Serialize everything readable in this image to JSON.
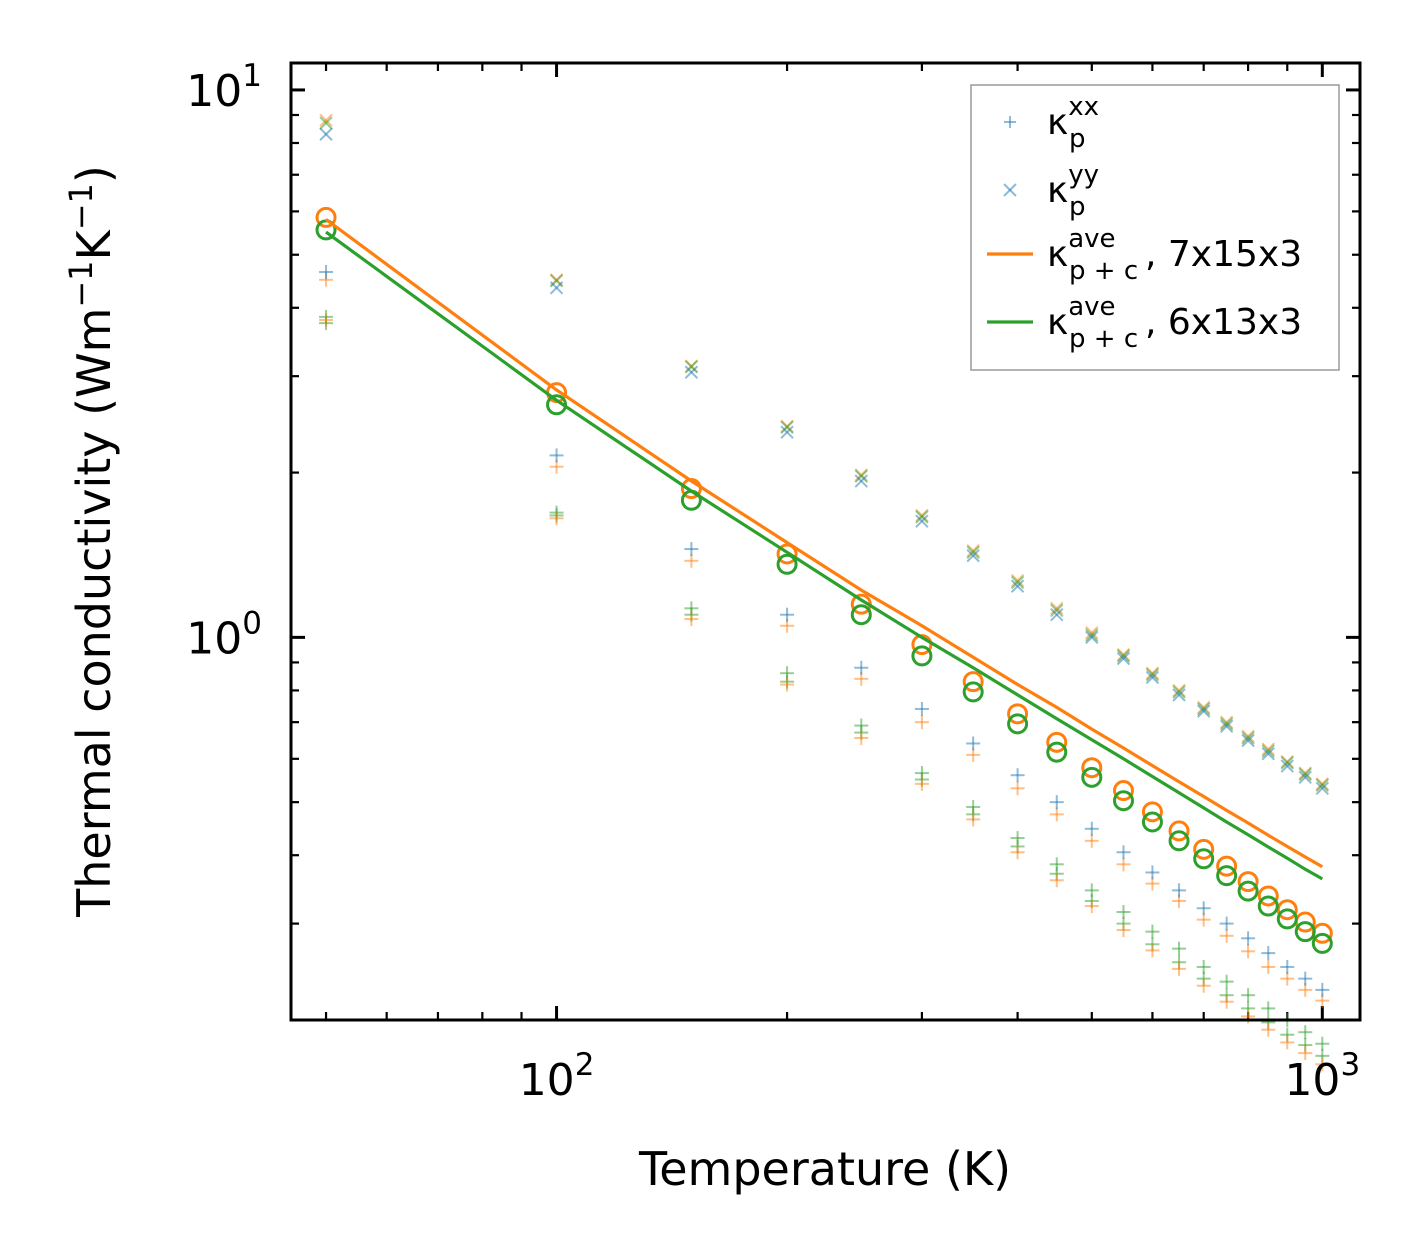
{
  "chart_data": {
    "type": "scatter",
    "xlabel": "Temperature (K)",
    "ylabel_parts": {
      "main": "Thermal conductivity (Wm",
      "exp1": "−1",
      "mid": "K",
      "exp2": "−1",
      "close": ")"
    },
    "xscale": "log",
    "yscale": "log",
    "xlim": [
      45,
      1120
    ],
    "ylim": [
      0.2,
      11.2
    ],
    "x_major_ticks": [
      {
        "value": 100,
        "base": "10",
        "exp": "2"
      },
      {
        "value": 1000,
        "base": "10",
        "exp": "3"
      }
    ],
    "y_major_ticks": [
      {
        "value": 1,
        "base": "10",
        "exp": "0"
      },
      {
        "value": 10,
        "base": "10",
        "exp": "1"
      }
    ],
    "x": [
      50,
      100,
      150,
      200,
      250,
      300,
      350,
      400,
      450,
      500,
      550,
      600,
      650,
      700,
      750,
      800,
      850,
      900,
      950,
      1000
    ],
    "legend_position": "upper right",
    "legend": [
      {
        "symbol": "plus",
        "color": "#1f77b4",
        "base": "κ",
        "sup": "xx",
        "sub": "p",
        "suffix": ""
      },
      {
        "symbol": "x",
        "color": "#1f77b4",
        "base": "κ",
        "sup": "yy",
        "sub": "p",
        "suffix": ""
      },
      {
        "symbol": "line",
        "color": "#ff7f0e",
        "base": "κ",
        "sup": "ave",
        "sub": "p + c",
        "suffix": ", 7x15x3"
      },
      {
        "symbol": "line",
        "color": "#2ca02c",
        "base": "κ",
        "sup": "ave",
        "sub": "p + c",
        "suffix": ", 6x13x3"
      }
    ],
    "series": [
      {
        "name": "κp xx (7x15x3)",
        "marker": "plus",
        "color": "#ff7f0e",
        "alpha": 0.5,
        "values": [
          4.5,
          2.05,
          1.38,
          1.05,
          0.84,
          0.7,
          0.61,
          0.53,
          0.475,
          0.425,
          0.385,
          0.355,
          0.33,
          0.305,
          0.285,
          0.267,
          0.25,
          0.238,
          0.227,
          0.217
        ]
      },
      {
        "name": "κp yy (7x15x3)",
        "marker": "x",
        "color": "#ff7f0e",
        "alpha": 0.5,
        "values": [
          8.8,
          4.5,
          3.13,
          2.43,
          1.98,
          1.67,
          1.44,
          1.27,
          1.13,
          1.02,
          0.93,
          0.86,
          0.8,
          0.745,
          0.7,
          0.66,
          0.625,
          0.593,
          0.565,
          0.54
        ]
      },
      {
        "name": "κp xx (6x13x3)",
        "marker": "plus",
        "color": "#2ca02c",
        "alpha": 0.5,
        "values": [
          3.85,
          1.67,
          1.1,
          0.83,
          0.67,
          0.55,
          0.475,
          0.415,
          0.37,
          0.33,
          0.3,
          0.275,
          0.255,
          0.238,
          0.222,
          0.21,
          0.198,
          0.188,
          0.18,
          0.172
        ]
      },
      {
        "name": "κp yy (6x13x3)",
        "marker": "x",
        "color": "#2ca02c",
        "alpha": 0.5,
        "values": [
          8.7,
          4.48,
          3.12,
          2.42,
          1.97,
          1.66,
          1.43,
          1.26,
          1.12,
          1.01,
          0.925,
          0.855,
          0.795,
          0.74,
          0.695,
          0.655,
          0.62,
          0.59,
          0.562,
          0.537
        ]
      },
      {
        "name": "κp xx (6x13x3) lower",
        "marker": "plus",
        "color": "#2ca02c",
        "alpha": 0.5,
        "values": [
          3.75,
          1.69,
          1.13,
          0.86,
          0.69,
          0.565,
          0.49,
          0.43,
          0.385,
          0.345,
          0.315,
          0.29,
          0.27,
          0.25,
          0.235,
          0.222,
          0.21,
          0.2,
          0.19,
          0.181
        ]
      },
      {
        "name": "κp xx (7x15x3) lower",
        "marker": "plus",
        "color": "#ff7f0e",
        "alpha": 0.5,
        "values": [
          3.8,
          1.65,
          1.08,
          0.82,
          0.655,
          0.54,
          0.465,
          0.405,
          0.36,
          0.323,
          0.292,
          0.268,
          0.248,
          0.231,
          0.216,
          0.203,
          0.192,
          0.182,
          0.174,
          0.166
        ]
      },
      {
        "name": "κp xx (blue)",
        "marker": "plus",
        "color": "#1f77b4",
        "alpha": 0.5,
        "values": [
          4.65,
          2.15,
          1.45,
          1.1,
          0.88,
          0.74,
          0.64,
          0.56,
          0.5,
          0.447,
          0.405,
          0.372,
          0.345,
          0.32,
          0.3,
          0.282,
          0.265,
          0.25,
          0.238,
          0.227
        ]
      },
      {
        "name": "κp yy (blue)",
        "marker": "x",
        "color": "#1f77b4",
        "alpha": 0.5,
        "values": [
          8.3,
          4.35,
          3.05,
          2.37,
          1.93,
          1.63,
          1.41,
          1.24,
          1.1,
          1.0,
          0.915,
          0.845,
          0.785,
          0.733,
          0.688,
          0.648,
          0.613,
          0.582,
          0.555,
          0.53
        ]
      },
      {
        "name": "κp+c ave 7x15x3 (circles)",
        "marker": "circle",
        "color": "#ff7f0e",
        "alpha": 1,
        "values": [
          5.85,
          2.8,
          1.87,
          1.42,
          1.15,
          0.97,
          0.83,
          0.725,
          0.643,
          0.578,
          0.525,
          0.48,
          0.443,
          0.41,
          0.382,
          0.358,
          0.337,
          0.318,
          0.302,
          0.288
        ]
      },
      {
        "name": "κp+c ave 6x13x3 (circles)",
        "marker": "circle",
        "color": "#2ca02c",
        "alpha": 1,
        "values": [
          5.55,
          2.66,
          1.78,
          1.36,
          1.1,
          0.925,
          0.795,
          0.695,
          0.617,
          0.555,
          0.503,
          0.46,
          0.425,
          0.394,
          0.367,
          0.344,
          0.323,
          0.306,
          0.29,
          0.276
        ]
      },
      {
        "name": "κp+c ave, 7x15x3",
        "marker": "line",
        "color": "#ff7f0e",
        "alpha": 1,
        "values": [
          5.8,
          2.83,
          1.93,
          1.49,
          1.22,
          1.05,
          0.92,
          0.82,
          0.745,
          0.68,
          0.628,
          0.583,
          0.545,
          0.512,
          0.483,
          0.458,
          0.435,
          0.415,
          0.397,
          0.381
        ]
      },
      {
        "name": "κp+c ave, 6x13x3",
        "marker": "line",
        "color": "#2ca02c",
        "alpha": 1,
        "values": [
          5.5,
          2.71,
          1.85,
          1.43,
          1.17,
          1.0,
          0.88,
          0.785,
          0.71,
          0.65,
          0.6,
          0.557,
          0.52,
          0.488,
          0.46,
          0.436,
          0.414,
          0.395,
          0.377,
          0.362
        ]
      }
    ]
  }
}
